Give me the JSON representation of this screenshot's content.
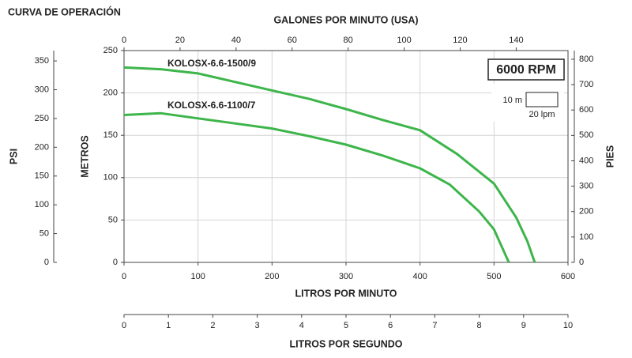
{
  "chart_data": {
    "type": "line",
    "title": "CURVA DE OPERACIÓN",
    "x_label": "LITROS POR MINUTO",
    "y_label": "METROS",
    "xlim": [
      0,
      600
    ],
    "xticks": [
      0,
      100,
      200,
      300,
      400,
      500,
      600
    ],
    "ylim": [
      0,
      250
    ],
    "yticks": [
      0,
      50,
      100,
      150,
      200,
      250
    ],
    "grid": true,
    "top_axis": {
      "label": "GALONES POR MINUTO (USA)",
      "xlim": [
        0,
        158.5
      ],
      "xticks": [
        0,
        20,
        40,
        60,
        80,
        100,
        120,
        140
      ]
    },
    "bottom_axis_2": {
      "label": "LITROS POR SEGUNDO",
      "xlim": [
        0,
        10
      ],
      "xticks": [
        0,
        1,
        2,
        3,
        4,
        5,
        6,
        7,
        8,
        9,
        10
      ]
    },
    "left_axis_2": {
      "label": "PSI",
      "ylim": [
        0,
        368
      ],
      "yticks": [
        0,
        50,
        100,
        150,
        200,
        250,
        300,
        350
      ]
    },
    "right_axis": {
      "label": "PIES",
      "ylim": [
        0,
        834
      ],
      "yticks": [
        0,
        100,
        200,
        300,
        400,
        500,
        600,
        700,
        800
      ]
    },
    "speed_label": "6000 RPM",
    "scale_legend": {
      "y_label": "10 m",
      "x_label": "20 lpm"
    },
    "series": [
      {
        "name": "KOLOSX-6.6-1500/9",
        "color": "#3db54a",
        "x": [
          0,
          50,
          100,
          150,
          200,
          250,
          300,
          350,
          400,
          450,
          500,
          530,
          545,
          555
        ],
        "values": [
          230,
          228,
          223,
          213,
          203,
          193,
          181,
          168,
          156,
          128,
          93,
          53,
          25,
          0
        ]
      },
      {
        "name": "KOLOSX-6.6-1100/7",
        "color": "#3db54a",
        "x": [
          0,
          50,
          100,
          150,
          200,
          250,
          300,
          350,
          400,
          440,
          480,
          500,
          520
        ],
        "values": [
          174,
          176,
          170,
          164,
          158,
          149,
          139,
          126,
          111,
          92,
          60,
          39,
          0
        ]
      }
    ]
  }
}
